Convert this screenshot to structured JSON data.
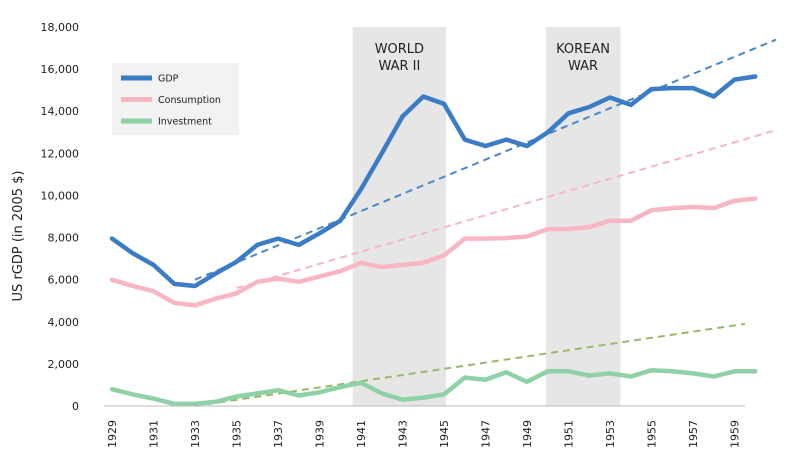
{
  "chart_data": {
    "type": "line",
    "title": "",
    "xlabel": "",
    "ylabel": "US rGDP (in 2005 $)",
    "xlim": [
      1929,
      1961
    ],
    "ylim": [
      0,
      18000
    ],
    "y_ticks": [
      "0",
      "2,000",
      "4,000",
      "6,000",
      "8,000",
      "10,000",
      "12,000",
      "14,000",
      "16,000",
      "18,000"
    ],
    "x_ticks": [
      "1929",
      "1931",
      "1933",
      "1935",
      "1937",
      "1939",
      "1941",
      "1943",
      "1945",
      "1947",
      "1949",
      "1951",
      "1953",
      "1955",
      "1957",
      "1959"
    ],
    "grid": false,
    "legend_position": "top-left",
    "x": [
      1929,
      1930,
      1931,
      1932,
      1933,
      1934,
      1935,
      1936,
      1937,
      1938,
      1939,
      1940,
      1941,
      1942,
      1943,
      1944,
      1945,
      1946,
      1947,
      1948,
      1949,
      1950,
      1951,
      1952,
      1953,
      1954,
      1955,
      1956,
      1957,
      1958,
      1959,
      1960
    ],
    "series": [
      {
        "name": "GDP",
        "color": "#3a7cc5",
        "values": [
          7950,
          7250,
          6700,
          5800,
          5700,
          6300,
          6850,
          7650,
          7950,
          7650,
          8200,
          8800,
          10300,
          12000,
          13750,
          14700,
          14350,
          12650,
          12350,
          12650,
          12350,
          13000,
          13900,
          14200,
          14650,
          14300,
          15050,
          15100,
          15100,
          14700,
          15500,
          15650
        ]
      },
      {
        "name": "Consumption",
        "color": "#f7b6c2",
        "values": [
          6000,
          5700,
          5450,
          4900,
          4780,
          5100,
          5350,
          5900,
          6050,
          5900,
          6150,
          6400,
          6800,
          6600,
          6700,
          6800,
          7150,
          7950,
          7950,
          7980,
          8050,
          8400,
          8400,
          8500,
          8800,
          8800,
          9300,
          9400,
          9450,
          9400,
          9750,
          9850
        ]
      },
      {
        "name": "Investment",
        "color": "#8fd1a6",
        "values": [
          800,
          550,
          350,
          100,
          100,
          200,
          450,
          600,
          750,
          500,
          650,
          900,
          1100,
          600,
          300,
          400,
          550,
          1350,
          1250,
          1600,
          1150,
          1650,
          1650,
          1450,
          1550,
          1400,
          1700,
          1650,
          1550,
          1400,
          1650,
          1650
        ]
      }
    ],
    "trend_lines": [
      {
        "series": "GDP",
        "color": "#4a88c8",
        "x": [
          1933,
          1961
        ],
        "y": [
          6000,
          17400
        ]
      },
      {
        "series": "Consumption",
        "color": "#f7b6c2",
        "x": [
          1935,
          1961
        ],
        "y": [
          5600,
          13100
        ]
      },
      {
        "series": "Investment",
        "color": "#9ab86a",
        "x": [
          1933,
          1959.5
        ],
        "y": [
          0,
          3900
        ]
      }
    ],
    "shaded_periods": [
      {
        "label": [
          "WORLD",
          "WAR II"
        ],
        "start": 1940.6,
        "end": 1945.1
      },
      {
        "label": [
          "KOREAN",
          "WAR"
        ],
        "start": 1949.9,
        "end": 1953.5
      }
    ]
  }
}
